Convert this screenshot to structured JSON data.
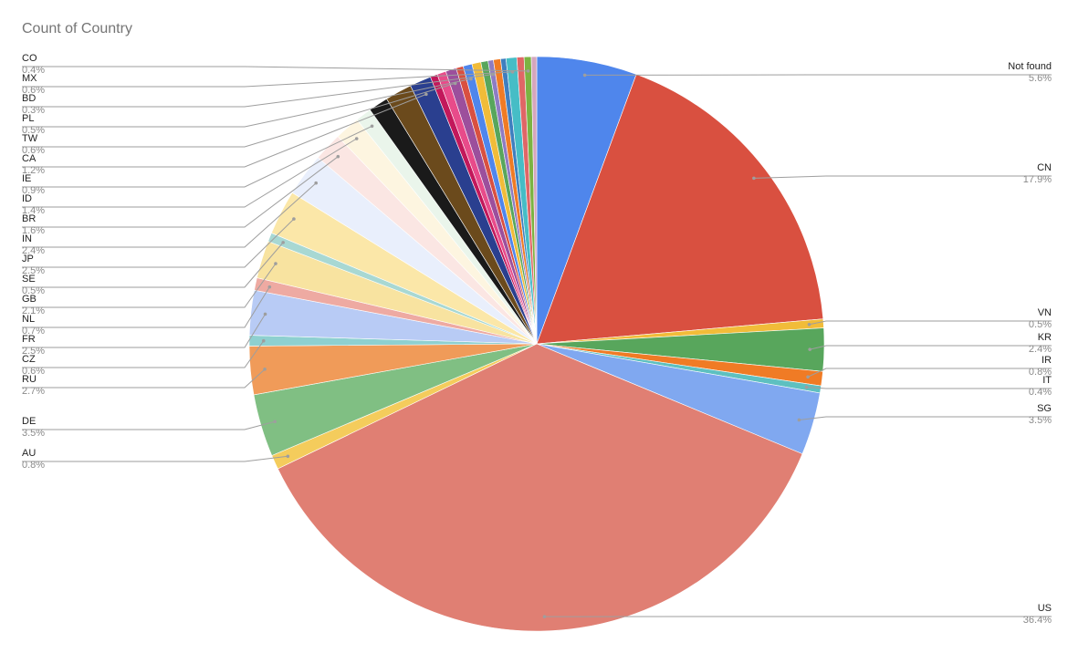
{
  "chart_data": {
    "type": "pie",
    "title": "Count of Country",
    "categories": [
      "Not found",
      "CN",
      "VN",
      "KR",
      "IR",
      "IT",
      "SG",
      "US",
      "AU",
      "DE",
      "RU",
      "CZ",
      "FR",
      "NL",
      "GB",
      "SE",
      "JP",
      "IN",
      "BR",
      "ID",
      "IE",
      null,
      null,
      "CA",
      null,
      null,
      "TW",
      null,
      "PL",
      null,
      null,
      "BD",
      null,
      null,
      "MX",
      null,
      "CO",
      null
    ],
    "values": [
      5.6,
      17.9,
      0.5,
      2.4,
      0.8,
      0.4,
      3.5,
      36.4,
      0.8,
      3.5,
      2.7,
      0.6,
      2.5,
      0.7,
      2.1,
      0.5,
      2.5,
      2.4,
      1.6,
      1.4,
      0.9,
      1.1,
      1.5,
      1.2,
      0.4,
      0.5,
      0.6,
      0.4,
      0.5,
      0.5,
      0.4,
      0.3,
      0.4,
      0.3,
      0.6,
      0.4,
      0.4,
      0.3
    ],
    "value_labels": [
      "5.6%",
      "17.9%",
      "0.5%",
      "2.4%",
      "0.8%",
      "0.4%",
      "3.5%",
      "36.4%",
      "0.8%",
      "3.5%",
      "2.7%",
      "0.6%",
      "2.5%",
      "0.7%",
      "2.1%",
      "0.5%",
      "2.5%",
      "2.4%",
      "1.6%",
      "1.4%",
      "0.9%",
      null,
      null,
      "1.2%",
      null,
      null,
      "0.6%",
      null,
      "0.5%",
      null,
      null,
      "0.3%",
      null,
      null,
      "0.6%",
      null,
      "0.4%",
      null
    ],
    "colors": [
      "#4f86ec",
      "#d95040",
      "#f1bc39",
      "#58a65c",
      "#f07b25",
      "#5ec0c0",
      "#80a8f0",
      "#e07f73",
      "#f4cc5c",
      "#80bf83",
      "#f09b59",
      "#8ed0d0",
      "#b8cbf5",
      "#eeaaa2",
      "#f8e3a0",
      "#a8d8d3",
      "#fbe7a8",
      "#e9effc",
      "#fbe6e3",
      "#fdf5e0",
      "#eaf5eb",
      "#1a1a1a",
      "#6b4a1c",
      "#2a3f8f",
      "#c2185b",
      "#e84b8a",
      "#9c4f9c",
      "#d95040",
      "#4f86ec",
      "#f1bc39",
      "#58a65c",
      "#8e7cc3",
      "#f07b25",
      "#3f7fbf",
      "#46bdc6",
      "#e06666",
      "#7cb342",
      "#d5a6bd"
    ]
  }
}
